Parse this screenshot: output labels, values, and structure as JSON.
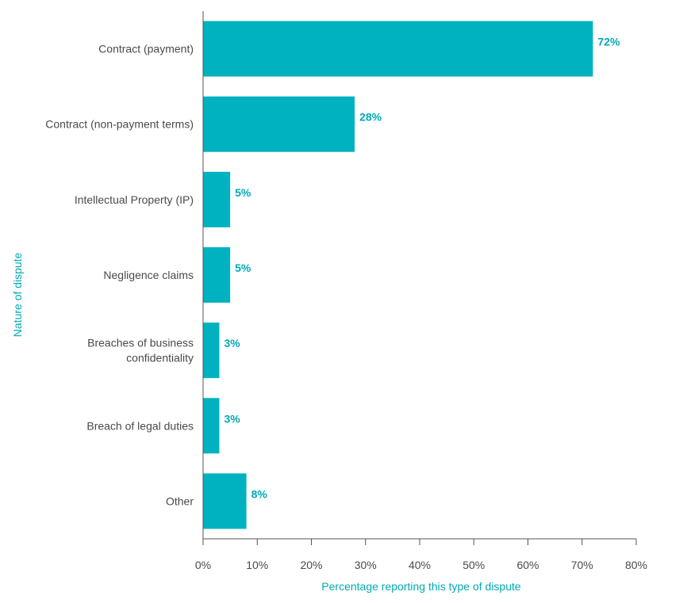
{
  "chart_data": {
    "type": "bar",
    "orientation": "horizontal",
    "categories": [
      [
        "Contract (payment)"
      ],
      [
        "Contract (non-payment terms)"
      ],
      [
        "Intellectual Property (IP)"
      ],
      [
        "Negligence claims"
      ],
      [
        "Breaches of business",
        "confidentiality"
      ],
      [
        "Breach of legal duties"
      ],
      [
        "Other"
      ]
    ],
    "values": [
      72,
      28,
      5,
      5,
      3,
      3,
      8
    ],
    "value_labels": [
      "72%",
      "28%",
      "5%",
      "5%",
      "3%",
      "3%",
      "8%"
    ],
    "xlabel": "Percentage reporting this type of dispute",
    "ylabel": "Nature of dispute",
    "xlim": [
      0,
      80
    ],
    "xticks": [
      0,
      10,
      20,
      30,
      40,
      50,
      60,
      70,
      80
    ],
    "xtick_labels": [
      "0%",
      "10%",
      "20%",
      "30%",
      "40%",
      "50%",
      "60%",
      "70%",
      "80%"
    ],
    "grid": false,
    "colors": {
      "bar": "#00b2bf",
      "accent_text": "#00a9b5",
      "axis": "#555555"
    }
  }
}
